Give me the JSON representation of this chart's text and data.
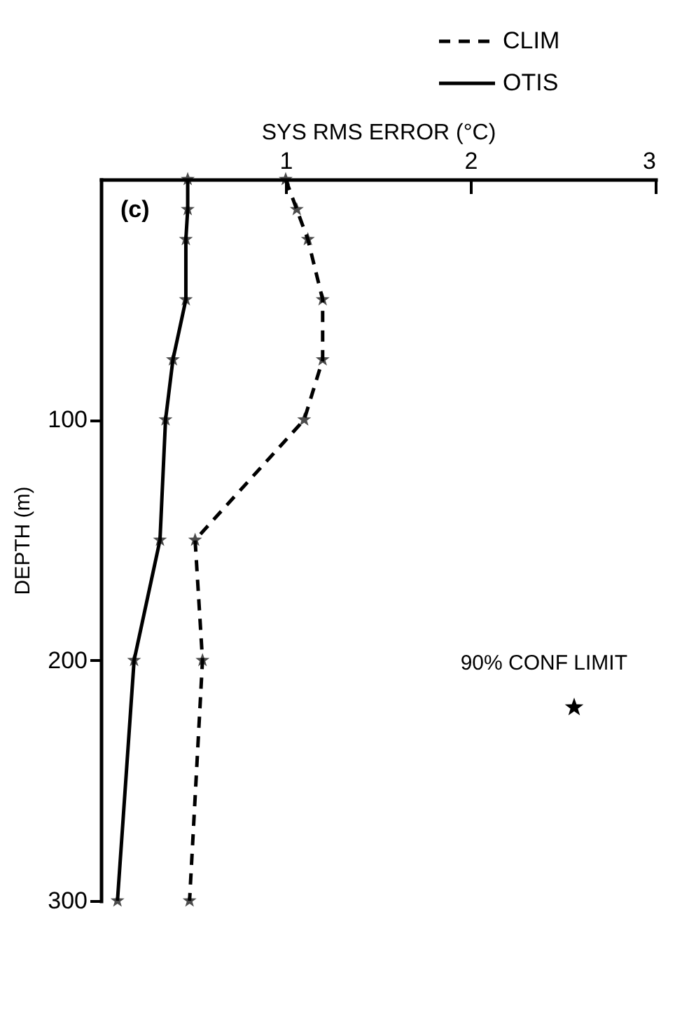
{
  "chart_data": {
    "type": "line",
    "xlabel": "SYS RMS ERROR (°C)",
    "ylabel": "DEPTH (m)",
    "x": [
      0,
      12.5,
      25,
      50,
      75,
      100,
      150,
      200,
      300
    ],
    "series": [
      {
        "name": "CLIM",
        "color": "#000000",
        "line_style": "dashed",
        "values": [
          1.0,
          1.06,
          1.12,
          1.2,
          1.2,
          1.1,
          0.51,
          0.55,
          0.48
        ]
      },
      {
        "name": "OTIS",
        "color": "#000000",
        "line_style": "solid",
        "values": [
          0.47,
          0.47,
          0.46,
          0.46,
          0.39,
          0.35,
          0.32,
          0.18,
          0.09
        ]
      }
    ],
    "orientation": "horizontal",
    "marker": "star",
    "xlim": [
      0,
      3
    ],
    "xticks": [
      1,
      2,
      3
    ],
    "ylim": [
      300,
      0
    ],
    "yticks": [
      100,
      200,
      300
    ],
    "grid": false,
    "legend": "top right",
    "annotations": [
      "(c)",
      "90% CONF LIMIT"
    ]
  }
}
